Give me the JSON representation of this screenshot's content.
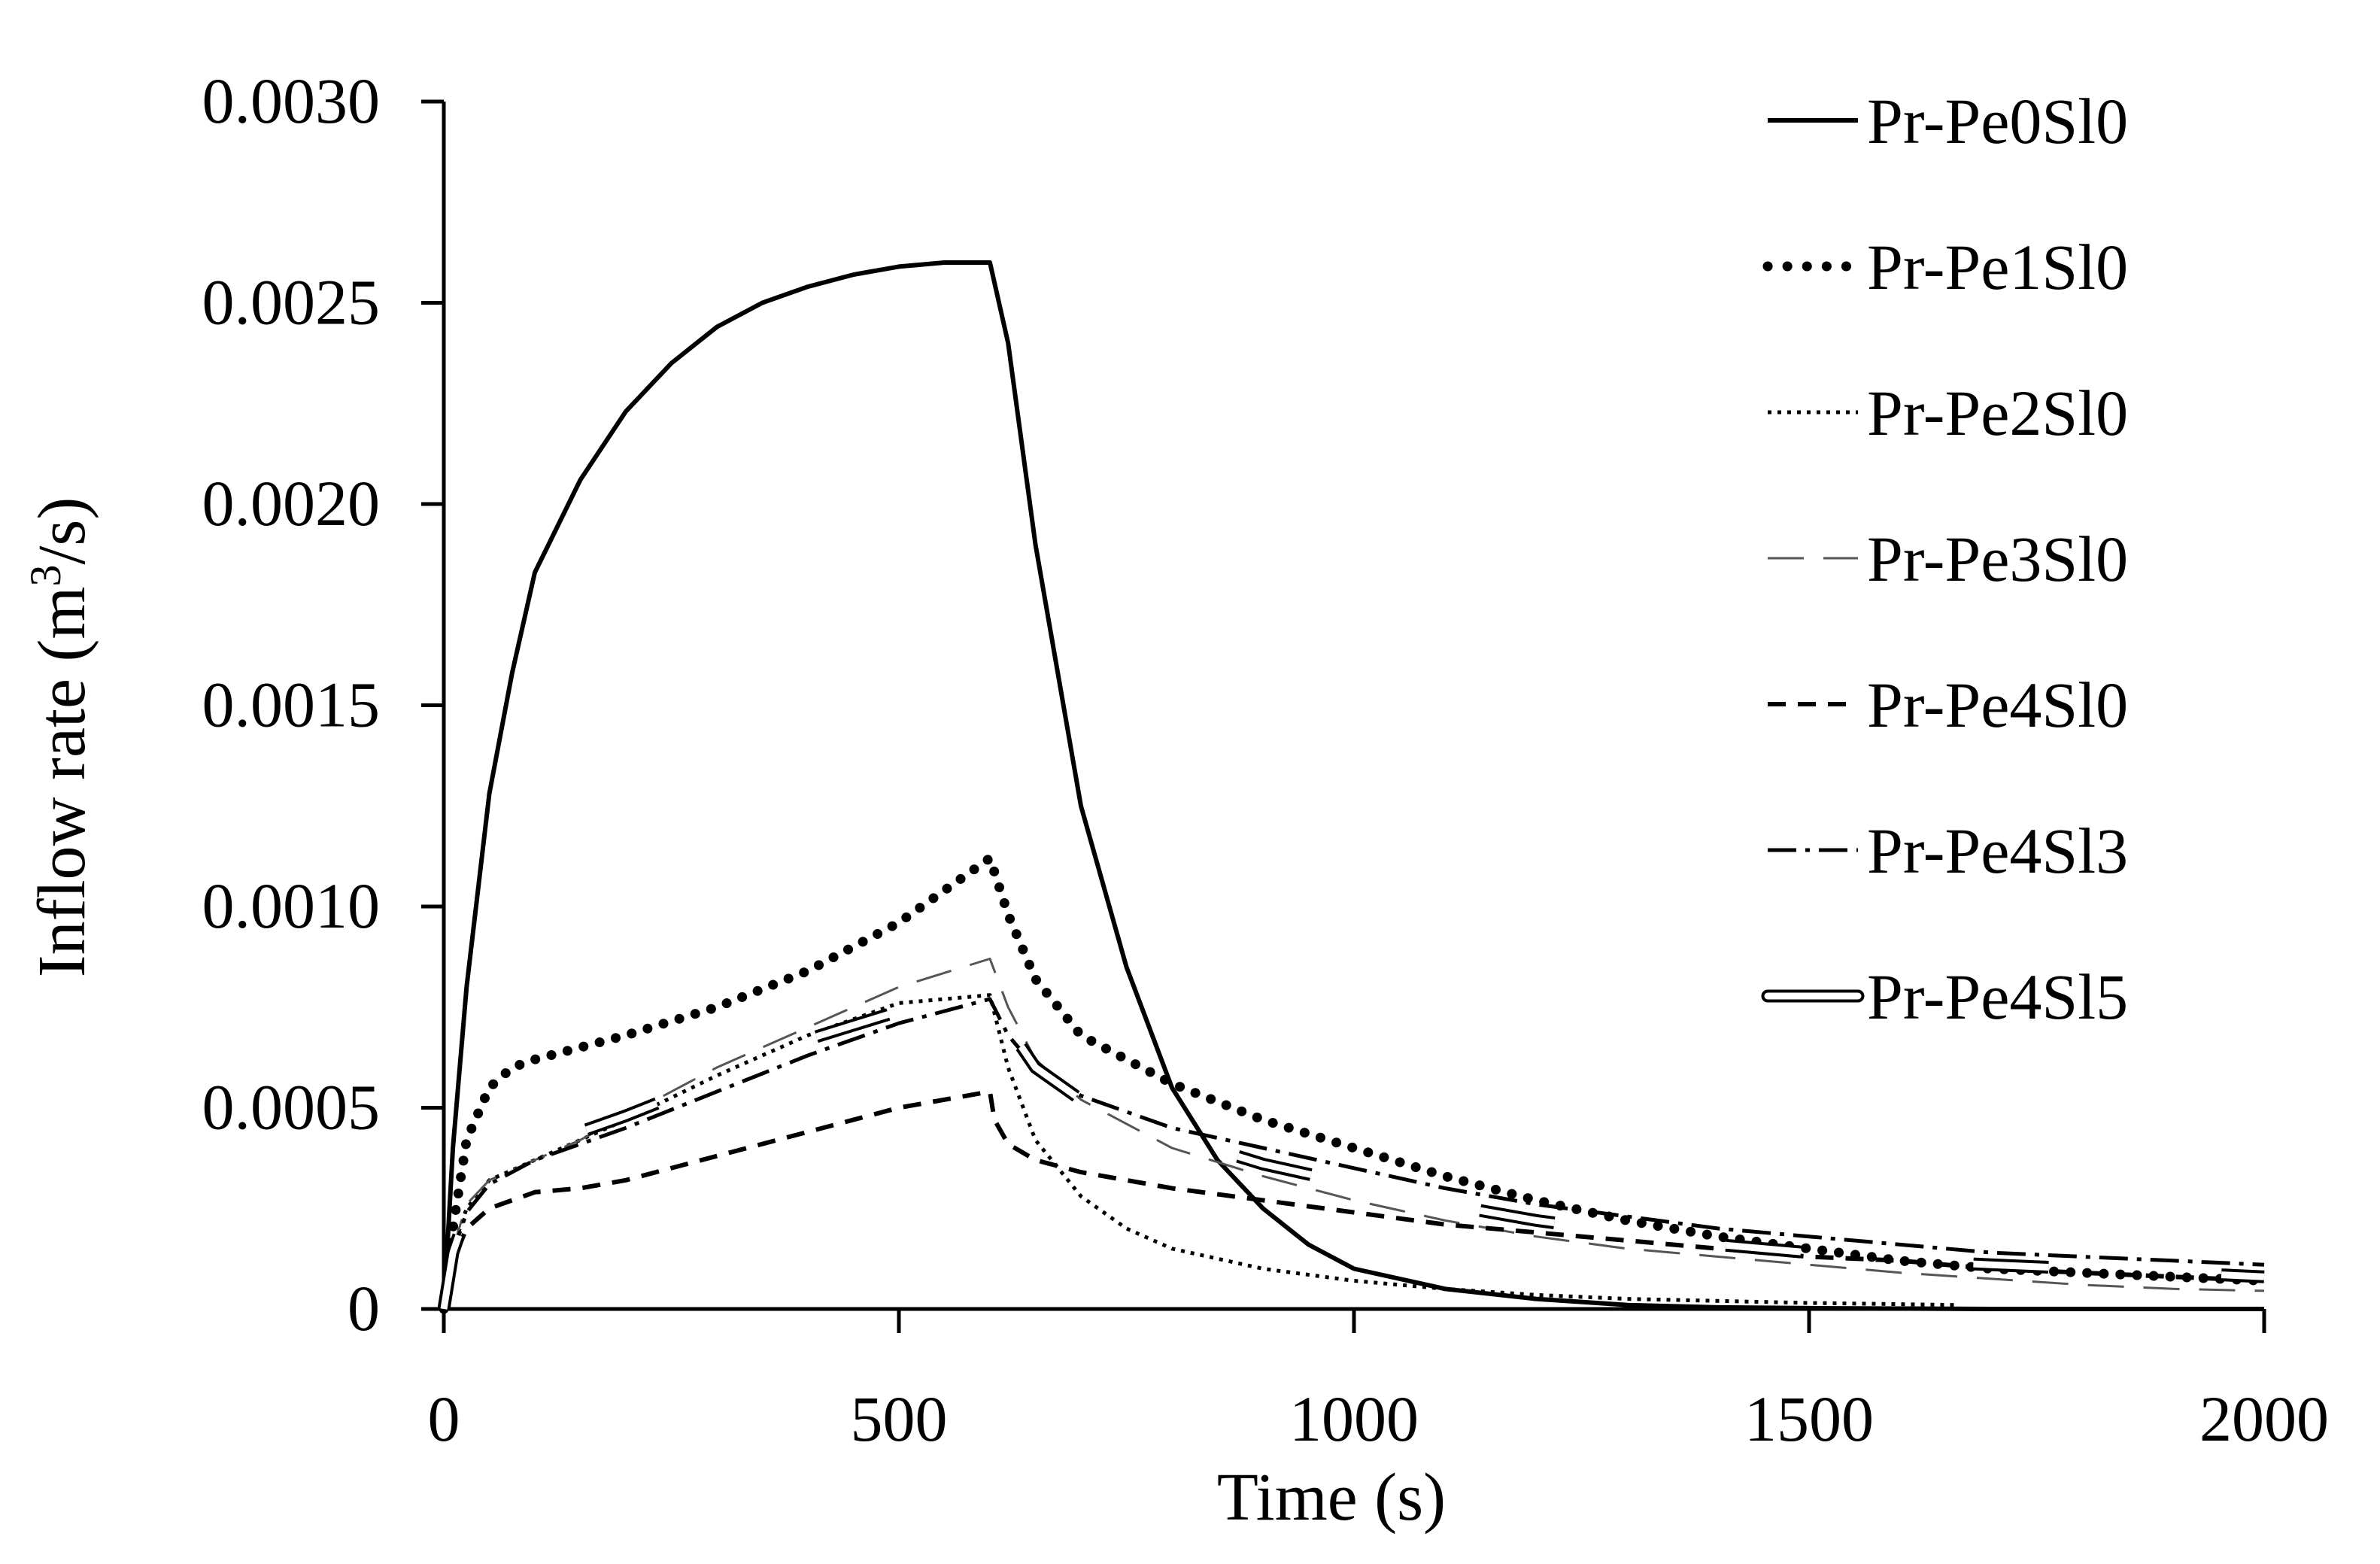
{
  "chart_data": {
    "type": "line",
    "title": "",
    "xlabel": "Time (s)",
    "ylabel_main": "Inflow rate (m",
    "ylabel_sup": "3",
    "ylabel_tail": "/s)",
    "xlim": [
      0,
      2000
    ],
    "ylim": [
      0,
      0.003
    ],
    "x_ticks": [
      0,
      500,
      1000,
      1500,
      2000
    ],
    "x_tick_labels": [
      "0",
      "500",
      "1000",
      "1500",
      "2000"
    ],
    "y_ticks": [
      0,
      0.0005,
      0.001,
      0.0015,
      0.002,
      0.0025,
      0.003
    ],
    "y_tick_labels": [
      "0",
      "0.0005",
      "0.0010",
      "0.0015",
      "0.0020",
      "0.0025",
      "0.0030"
    ],
    "grid": false,
    "legend_position": "top-right",
    "series": [
      {
        "name": "Pr-Pe0Sl0",
        "style": "solid",
        "x": [
          0,
          10,
          25,
          50,
          75,
          100,
          150,
          200,
          250,
          300,
          350,
          400,
          450,
          500,
          550,
          600,
          620,
          650,
          700,
          750,
          800,
          850,
          900,
          950,
          1000,
          1100,
          1200,
          1300,
          1400,
          1500,
          1600,
          1700,
          1800,
          2000
        ],
        "y": [
          0,
          0.0004,
          0.0008,
          0.00128,
          0.00158,
          0.00183,
          0.00206,
          0.00223,
          0.00235,
          0.00244,
          0.0025,
          0.00254,
          0.00257,
          0.00259,
          0.0026,
          0.0026,
          0.0024,
          0.0019,
          0.00125,
          0.00085,
          0.00055,
          0.00037,
          0.00025,
          0.00016,
          0.0001,
          5e-05,
          2.5e-05,
          1e-05,
          4e-06,
          2e-06,
          1e-06,
          0,
          0,
          0
        ]
      },
      {
        "name": "Pr-Pe1Sl0",
        "style": "bold-dotted",
        "x": [
          0,
          10,
          25,
          50,
          75,
          100,
          150,
          200,
          300,
          400,
          500,
          600,
          620,
          650,
          700,
          800,
          900,
          1000,
          1100,
          1200,
          1300,
          1400,
          1500,
          1600,
          1700,
          1800,
          1900,
          2000
        ],
        "y": [
          0,
          0.0002,
          0.00042,
          0.00055,
          0.0006,
          0.00062,
          0.00065,
          0.00068,
          0.00075,
          0.00084,
          0.00096,
          0.00112,
          0.00098,
          0.00082,
          0.00068,
          0.00056,
          0.00047,
          0.0004,
          0.00033,
          0.00027,
          0.00022,
          0.00018,
          0.00015,
          0.00012,
          0.0001,
          9e-05,
          8e-05,
          7e-05
        ]
      },
      {
        "name": "Pr-Pe2Sl0",
        "style": "fine-dotted",
        "x": [
          0,
          10,
          25,
          50,
          100,
          150,
          200,
          300,
          400,
          500,
          600,
          620,
          650,
          700,
          750,
          800,
          900,
          1000,
          1100,
          1200,
          1300,
          1400,
          1500,
          1600,
          1660
        ],
        "y": [
          0,
          0.00015,
          0.00025,
          0.00032,
          0.00037,
          0.00042,
          0.00047,
          0.00058,
          0.00068,
          0.00076,
          0.00078,
          0.0006,
          0.00042,
          0.00028,
          0.0002,
          0.00015,
          0.0001,
          7e-05,
          5e-05,
          3.5e-05,
          2.5e-05,
          2e-05,
          1.5e-05,
          1.2e-05,
          1e-05
        ]
      },
      {
        "name": "Pr-Pe3Sl0",
        "style": "long-dash",
        "x": [
          0,
          10,
          25,
          50,
          100,
          150,
          200,
          300,
          400,
          500,
          600,
          620,
          650,
          700,
          800,
          900,
          1000,
          1100,
          1200,
          1300,
          1400,
          1500,
          1600,
          1700,
          1800,
          1900,
          2000
        ],
        "y": [
          0,
          0.00015,
          0.00026,
          0.00032,
          0.00037,
          0.00042,
          0.00048,
          0.0006,
          0.0007,
          0.0008,
          0.00087,
          0.00075,
          0.00062,
          0.00052,
          0.0004,
          0.00033,
          0.00027,
          0.00022,
          0.00018,
          0.00015,
          0.00013,
          0.00011,
          9e-05,
          7.5e-05,
          6e-05,
          5e-05,
          4.5e-05
        ]
      },
      {
        "name": "Pr-Pe4Sl0",
        "style": "dash",
        "x": [
          0,
          10,
          25,
          50,
          100,
          150,
          200,
          300,
          400,
          500,
          600,
          605,
          620,
          650,
          700,
          800,
          900,
          1000,
          1100,
          1200,
          1300,
          1400,
          1500,
          1600,
          1700,
          1800,
          1900,
          2000
        ],
        "y": [
          0,
          0.00012,
          0.0002,
          0.00025,
          0.00029,
          0.0003,
          0.00032,
          0.00038,
          0.00044,
          0.0005,
          0.00054,
          0.00047,
          0.00041,
          0.00037,
          0.00034,
          0.0003,
          0.00027,
          0.00024,
          0.00021,
          0.00019,
          0.00017,
          0.00015,
          0.00013,
          0.00012,
          0.0001,
          9e-05,
          8e-05,
          7e-05
        ]
      },
      {
        "name": "Pr-Pe4Sl3",
        "style": "dash-dot",
        "x": [
          0,
          10,
          25,
          50,
          100,
          150,
          200,
          300,
          400,
          500,
          600,
          620,
          650,
          700,
          800,
          900,
          1000,
          1100,
          1200,
          1300,
          1400,
          1500,
          1600,
          1700,
          1800,
          1900,
          2000
        ],
        "y": [
          0,
          0.00014,
          0.00024,
          0.00031,
          0.00037,
          0.00041,
          0.00045,
          0.00054,
          0.00063,
          0.00071,
          0.00077,
          0.00068,
          0.0006,
          0.00053,
          0.00045,
          0.0004,
          0.00035,
          0.0003,
          0.00026,
          0.00023,
          0.0002,
          0.00018,
          0.00016,
          0.00014,
          0.00013,
          0.00012,
          0.00011
        ]
      },
      {
        "name": "Pr-Pe4Sl5",
        "style": "double-line",
        "x": [
          0,
          10,
          25,
          50,
          100,
          150,
          200,
          300,
          400,
          500,
          600,
          605,
          620,
          650,
          700,
          800,
          900,
          1000,
          1100,
          1200,
          1300,
          1400,
          1500,
          1600,
          1700,
          1800,
          1900,
          2000
        ],
        "y": [
          0,
          0.00014,
          0.00024,
          0.0003,
          0.0004,
          0.00044,
          0.00048,
          0.00057,
          0.00067,
          0.00074,
          0.0008,
          0.00076,
          0.0007,
          0.0006,
          0.00052,
          0.00043,
          0.00036,
          0.00031,
          0.00026,
          0.00022,
          0.00019,
          0.00016,
          0.00014,
          0.00012,
          0.00011,
          0.0001,
          9e-05,
          8e-05
        ]
      }
    ]
  }
}
